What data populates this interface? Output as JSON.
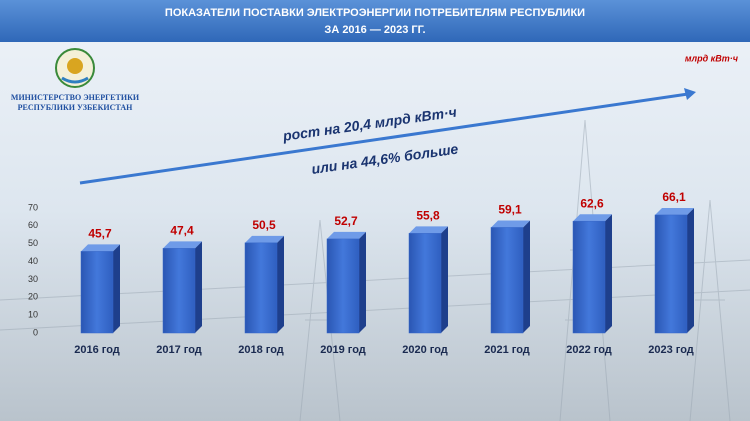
{
  "chart_data": {
    "type": "bar",
    "title": "ПОКАЗАТЕЛИ ПОСТАВКИ ЭЛЕКТРОЭНЕРГИИ ПОТРЕБИТЕЛЯМ РЕСПУБЛИКИ",
    "subtitle": "ЗА 2016 — 2023 ГГ.",
    "organization": [
      "МИНИСТЕРСТВО ЭНЕРГЕТИКИ",
      "РЕСПУБЛИКИ УЗБЕКИСТАН"
    ],
    "unit": "млрд кВт·ч",
    "annotations": [
      "рост на 20,4 млрд кВт·ч",
      "или на 44,6% больше"
    ],
    "categories": [
      "2016 год",
      "2017 год",
      "2018 год",
      "2019 год",
      "2020 год",
      "2021 год",
      "2022 год",
      "2023 год"
    ],
    "values": [
      45.7,
      47.4,
      50.5,
      52.7,
      55.8,
      59.1,
      62.6,
      66.1
    ],
    "value_labels": [
      "45,7",
      "47,4",
      "50,5",
      "52,7",
      "55,8",
      "59,1",
      "62,6",
      "66,1"
    ],
    "color": "#3566c8",
    "ylim": [
      0,
      70
    ],
    "yticks": [
      0,
      10,
      20,
      30,
      40,
      50,
      60,
      70
    ]
  }
}
